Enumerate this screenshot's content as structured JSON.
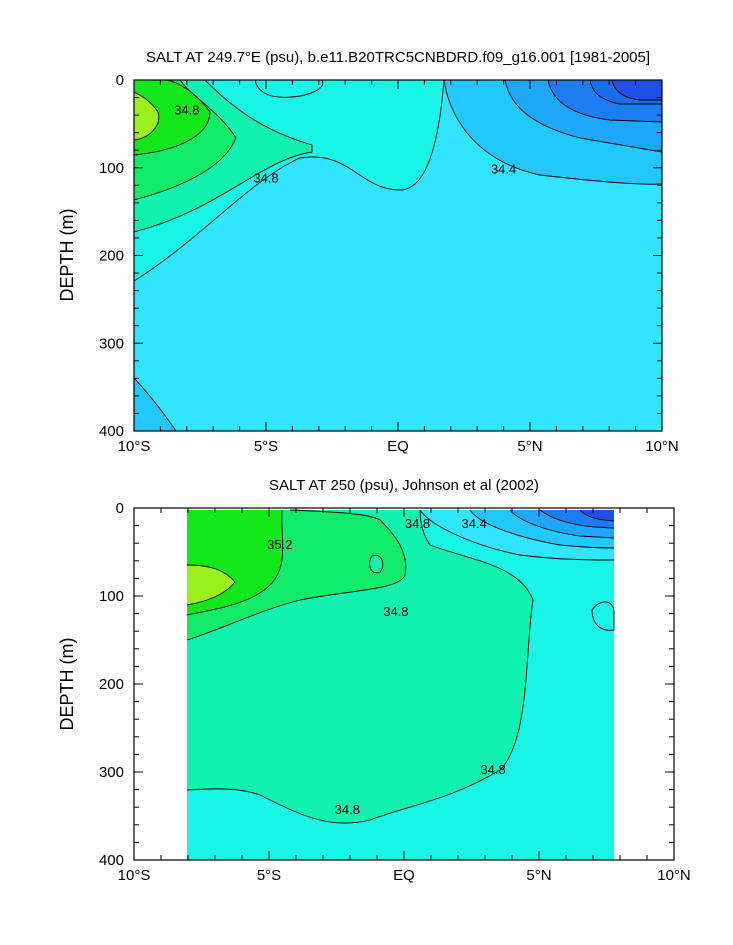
{
  "chart_data": [
    {
      "type": "heatmap",
      "title": "SALT AT 249.7°E (psu), b.e11.B20TRC5CNBDRD.f09_g16.001 [1981-2005]",
      "xlabel": "",
      "ylabel": "DEPTH (m)",
      "x_ticks": [
        "10°S",
        "5°S",
        "EQ",
        "5°N",
        "10°N"
      ],
      "x_tick_values": [
        -10,
        -5,
        0,
        5,
        10
      ],
      "y_ticks": [
        "0",
        "100",
        "200",
        "300",
        "400"
      ],
      "y_tick_values": [
        0,
        100,
        200,
        300,
        400
      ],
      "xlim": [
        -10,
        10
      ],
      "ylim": [
        400,
        0
      ],
      "contour_interval": 0.2,
      "contour_labels": [
        {
          "text": "34.8",
          "lat": -8.0,
          "depth": 35
        },
        {
          "text": "34.8",
          "lat": -5.0,
          "depth": 112
        },
        {
          "text": "34.4",
          "lat": 4.0,
          "depth": 102
        }
      ],
      "colormap": [
        {
          "level": "33.6",
          "color": "#1e4fe6"
        },
        {
          "level": "33.8",
          "color": "#1c7cf2"
        },
        {
          "level": "34.0",
          "color": "#1ea6f8"
        },
        {
          "level": "34.2",
          "color": "#22c8fc"
        },
        {
          "level": "34.4",
          "color": "#30e6ff"
        },
        {
          "level": "34.6",
          "color": "#19f5e6"
        },
        {
          "level": "34.8",
          "color": "#10f3b0"
        },
        {
          "level": "35.0",
          "color": "#10ec6a"
        },
        {
          "level": "35.2",
          "color": "#12e818"
        },
        {
          "level": "35.4",
          "color": "#9cf01a"
        }
      ]
    },
    {
      "type": "heatmap",
      "title": "SALT AT 250 (psu), Johnson et al (2002)",
      "xlabel": "",
      "ylabel": "DEPTH (m)",
      "x_ticks": [
        "10°S",
        "5°S",
        "EQ",
        "5°N",
        "10°N"
      ],
      "x_tick_values": [
        -10,
        -5,
        0,
        5,
        10
      ],
      "y_ticks": [
        "0",
        "100",
        "200",
        "300",
        "400"
      ],
      "y_tick_values": [
        0,
        100,
        200,
        300,
        400
      ],
      "xlim": [
        -10,
        10
      ],
      "ylim": [
        400,
        0
      ],
      "data_extent_lat": [
        -8,
        8.2
      ],
      "contour_interval": 0.2,
      "contour_labels": [
        {
          "text": "35.2",
          "lat": -4.6,
          "depth": 42
        },
        {
          "text": "34.8",
          "lat": 0.5,
          "depth": 18
        },
        {
          "text": "34.4",
          "lat": 2.6,
          "depth": 18
        },
        {
          "text": "34.8",
          "lat": -0.3,
          "depth": 118
        },
        {
          "text": "34.8",
          "lat": -2.1,
          "depth": 343
        },
        {
          "text": "34.8",
          "lat": 3.3,
          "depth": 298
        }
      ]
    }
  ]
}
